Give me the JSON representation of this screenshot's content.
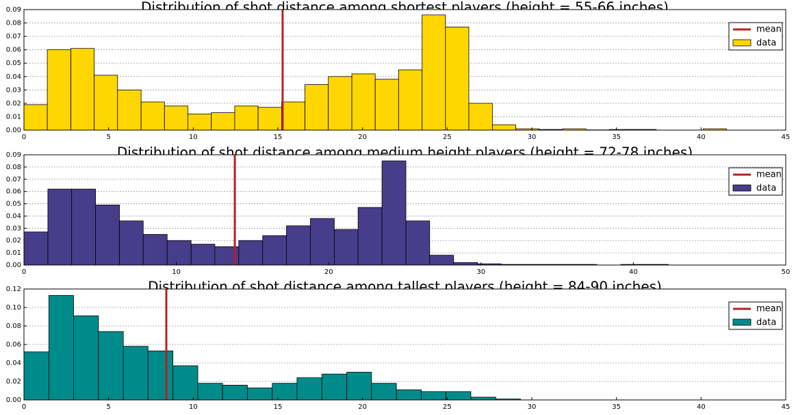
{
  "chart_data": [
    {
      "type": "histogram",
      "title": "Distribution of shot distance among shortest players (height = 55-66 inches)",
      "bins": [
        0,
        1.38,
        2.77,
        4.15,
        5.53,
        6.92,
        8.3,
        9.68,
        11.07,
        12.45,
        13.83,
        15.22,
        16.6,
        17.98,
        19.37,
        20.75,
        22.13,
        23.52,
        24.9,
        26.28,
        27.67,
        29.05,
        30.43,
        31.82,
        33.2,
        34.58,
        35.97,
        37.35,
        38.73,
        40.12,
        41.5
      ],
      "values": [
        0.019,
        0.06,
        0.061,
        0.041,
        0.03,
        0.021,
        0.018,
        0.012,
        0.013,
        0.018,
        0.017,
        0.021,
        0.034,
        0.04,
        0.042,
        0.038,
        0.045,
        0.086,
        0.077,
        0.02,
        0.004,
        0.001,
        0.0005,
        0.001,
        0.0002,
        0.0005,
        0.0005,
        0,
        0,
        0.001
      ],
      "name": "data",
      "color": "#ffd700",
      "mean_line": {
        "name": "mean",
        "x": 15.28,
        "color": "#b22222"
      },
      "xlim": [
        0,
        45
      ],
      "xticks": [
        0,
        5,
        10,
        15,
        20,
        25,
        30,
        35,
        40,
        45
      ],
      "ylim": [
        0,
        0.09
      ],
      "yticks": [
        {
          "value": 0,
          "label": "0.00"
        },
        0.01,
        0.02,
        0.03,
        0.04,
        0.05,
        0.06,
        0.07,
        0.08,
        0.09
      ],
      "grid": "y",
      "legend": "upper right"
    },
    {
      "type": "histogram",
      "title": "Distribution of shot distance among medium height players (height = 72-78 inches)",
      "bins": [
        0,
        1.57,
        3.13,
        4.7,
        6.27,
        7.83,
        9.4,
        10.97,
        12.53,
        14.1,
        15.67,
        17.23,
        18.8,
        20.37,
        21.93,
        23.5,
        25.07,
        26.63,
        28.2,
        29.77,
        31.33,
        32.9,
        34.47,
        36.03,
        37.6,
        39.17,
        40.73,
        42.3,
        43.87,
        45.43,
        47
      ],
      "values": [
        0.027,
        0.062,
        0.062,
        0.049,
        0.036,
        0.025,
        0.02,
        0.017,
        0.015,
        0.02,
        0.024,
        0.032,
        0.038,
        0.029,
        0.047,
        0.085,
        0.036,
        0.008,
        0.002,
        0.001,
        0.0005,
        0.0005,
        0.0005,
        0.0005,
        0,
        0.0005,
        0.0005,
        0,
        0,
        0
      ],
      "name": "data",
      "color": "#483d8b",
      "mean_line": {
        "name": "mean",
        "x": 13.84,
        "color": "#b22222"
      },
      "xlim": [
        0,
        50
      ],
      "xticks": [
        0,
        10,
        20,
        30,
        40,
        50
      ],
      "ylim": [
        0,
        0.09
      ],
      "yticks": [
        {
          "value": 0,
          "label": "0.00"
        },
        0.01,
        0.02,
        0.03,
        0.04,
        0.05,
        0.06,
        0.07,
        0.08,
        0.09
      ],
      "grid": "y",
      "legend": "upper right"
    },
    {
      "type": "histogram",
      "title": "Distribution of shot distance among tallest players (height = 84-90 inches)",
      "bins": [
        0,
        1.47,
        2.93,
        4.4,
        5.87,
        7.33,
        8.8,
        10.27,
        11.73,
        13.2,
        14.67,
        16.13,
        17.6,
        19.07,
        20.53,
        22,
        23.47,
        24.93,
        26.4,
        27.87,
        29.33,
        30.8,
        32.27,
        33.73,
        35.2,
        36.67,
        38.13,
        39.6,
        41.07,
        42.53,
        44
      ],
      "values": [
        0.052,
        0.113,
        0.091,
        0.074,
        0.058,
        0.053,
        0.037,
        0.018,
        0.016,
        0.013,
        0.018,
        0.024,
        0.028,
        0.03,
        0.018,
        0.011,
        0.009,
        0.009,
        0.003,
        0.001,
        0,
        0,
        0,
        0,
        0,
        0,
        0,
        0,
        0,
        0
      ],
      "name": "data",
      "color": "#008b8b",
      "mean_line": {
        "name": "mean",
        "x": 8.41,
        "color": "#b22222"
      },
      "xlim": [
        0,
        45
      ],
      "xticks": [
        0,
        5,
        10,
        15,
        20,
        25,
        30,
        35,
        40,
        45
      ],
      "ylim": [
        0,
        0.12
      ],
      "yticks": [
        {
          "value": 0,
          "label": "0.00"
        },
        0.02,
        0.04,
        0.06,
        0.08,
        {
          "value": 0.1,
          "label": "0.10"
        },
        0.12
      ],
      "grid": "y",
      "legend": "upper right"
    }
  ]
}
